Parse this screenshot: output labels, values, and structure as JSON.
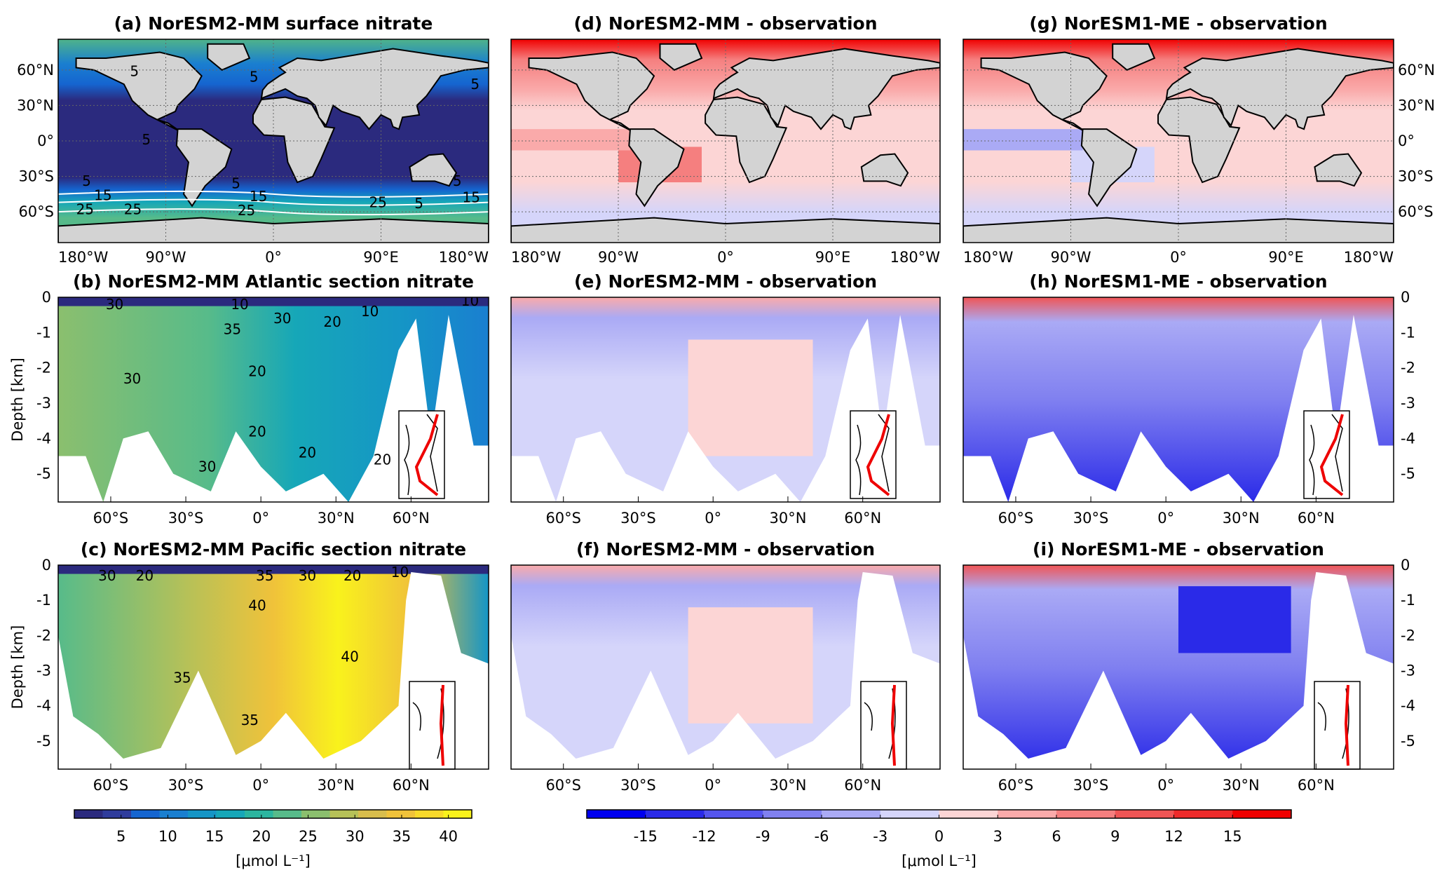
{
  "panels": [
    {
      "id": "a",
      "title": "(a) NorESM2-MM surface nitrate",
      "kind": "map",
      "field": "nitrate",
      "contour_labels": [
        "5",
        "5",
        "5",
        "5",
        "5",
        "5",
        "15",
        "25",
        "25",
        "5",
        "15",
        "25",
        "25",
        "5",
        "15"
      ]
    },
    {
      "id": "d",
      "title": "(d) NorESM2-MM - observation",
      "kind": "map",
      "field": "diff"
    },
    {
      "id": "g",
      "title": "(g) NorESM1-ME - observation",
      "kind": "map",
      "field": "diff"
    },
    {
      "id": "b",
      "title": "(b) NorESM2-MM Atlantic section nitrate",
      "kind": "section",
      "field": "nitrate",
      "basin": "Atlantic",
      "contour_labels": [
        "30",
        "10",
        "35",
        "30",
        "20",
        "10",
        "10",
        "30",
        "20",
        "20",
        "20",
        "20",
        "30"
      ]
    },
    {
      "id": "e",
      "title": "(e) NorESM2-MM - observation",
      "kind": "section",
      "field": "diff",
      "basin": "Atlantic"
    },
    {
      "id": "h",
      "title": "(h) NorESM1-ME - observation",
      "kind": "section",
      "field": "diff",
      "basin": "Atlantic"
    },
    {
      "id": "c",
      "title": "(c) NorESM2-MM Pacific section nitrate",
      "kind": "section",
      "field": "nitrate",
      "basin": "Pacific",
      "contour_labels": [
        "30",
        "20",
        "35",
        "40",
        "30",
        "20",
        "10",
        "40",
        "35",
        "35"
      ]
    },
    {
      "id": "f",
      "title": "(f) NorESM2-MM - observation",
      "kind": "section",
      "field": "diff",
      "basin": "Pacific"
    },
    {
      "id": "i",
      "title": "(i) NorESM1-ME - observation",
      "kind": "section",
      "field": "diff",
      "basin": "Pacific"
    }
  ],
  "map_axes": {
    "x_ticks": [
      "180°W",
      "90°W",
      "0°",
      "90°E",
      "180°W"
    ],
    "y_ticks": [
      "60°N",
      "30°N",
      "0°",
      "30°S",
      "60°S"
    ],
    "lon_range": [
      -180,
      180
    ],
    "lat_range": [
      -86,
      86
    ]
  },
  "section_axes": {
    "x_ticks": [
      "60°S",
      "30°S",
      "0°",
      "30°N",
      "60°N"
    ],
    "y_ticks": [
      "0",
      "-1",
      "-2",
      "-3",
      "-4",
      "-5"
    ],
    "ylabel": "Depth [km]",
    "lat_range": [
      -81,
      91
    ],
    "depth_range_km": [
      0,
      -5.8
    ]
  },
  "colorbars": [
    {
      "name": "nitrate",
      "ticks": [
        "5",
        "10",
        "15",
        "20",
        "25",
        "30",
        "35",
        "40"
      ],
      "range": [
        0,
        42.5
      ],
      "unit": "[μmol L⁻¹]",
      "colors": [
        "#2b2a7e",
        "#2f3c9c",
        "#1565d0",
        "#1a7fd0",
        "#1595c6",
        "#16a7b8",
        "#2bb59f",
        "#57bb8a",
        "#8bbf6e",
        "#b6c158",
        "#d8bd4c",
        "#f0c23a",
        "#f8d92a",
        "#f9f21c"
      ]
    },
    {
      "name": "difference",
      "ticks": [
        "-15",
        "-12",
        "-9",
        "-6",
        "-3",
        "0",
        "3",
        "6",
        "9",
        "12",
        "15"
      ],
      "range": [
        -18,
        18
      ],
      "unit": "[μmol L⁻¹]",
      "colors": [
        "#0000f0",
        "#2a2ae8",
        "#5555ee",
        "#8080f0",
        "#aaaaf5",
        "#d5d5fa",
        "#fcd5d5",
        "#faaaaa",
        "#f57f7f",
        "#f05555",
        "#ee2a2a",
        "#f00000"
      ]
    }
  ]
}
